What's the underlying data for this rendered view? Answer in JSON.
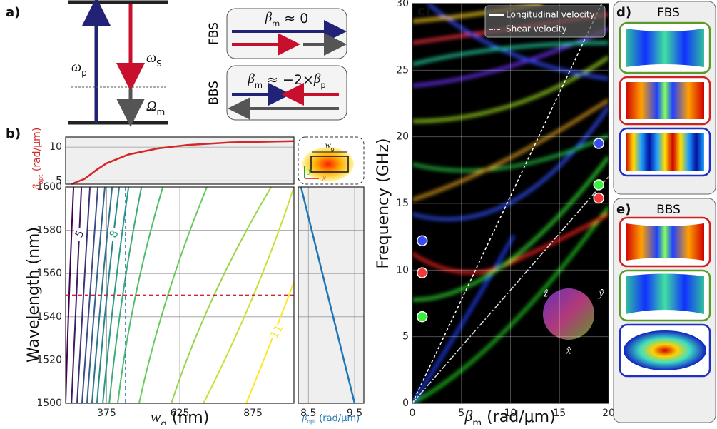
{
  "panel_labels": [
    "a)",
    "b)",
    "c)",
    "d)",
    "e)"
  ],
  "panel_a": {
    "omega_p": {
      "sym": "ω",
      "sub": "p"
    },
    "omega_s": {
      "sym": "ω",
      "sub": "S"
    },
    "Omega_m": {
      "sym": "Ω",
      "sub": "m"
    },
    "fbs": {
      "label": "FBS",
      "sym": "β",
      "sub": "m",
      "rel": " ≈ 0"
    },
    "bbs": {
      "label": "BBS",
      "sym": "β",
      "sub": "m",
      "rel": " ≈ −2×",
      "sym2": "β",
      "sub2": "p"
    }
  },
  "inset": {
    "width": {
      "sym": "w",
      "sub": "g"
    },
    "y": "y",
    "x": "x"
  },
  "chart_data": [
    {
      "type": "line",
      "ylabel": {
        "sym": "β",
        "sub": "opt",
        "unit": " (rad/μm)"
      },
      "xlim": [
        235,
        1015
      ],
      "ylim": [
        4.5,
        11.5
      ],
      "yticks": [
        5,
        10
      ],
      "grid": true,
      "series": [
        {
          "color": "#d62728",
          "x": [
            255,
            300,
            340,
            375,
            450,
            550,
            650,
            800,
            1015
          ],
          "values": [
            4.5,
            5.3,
            6.6,
            7.6,
            8.9,
            9.8,
            10.3,
            10.7,
            10.9
          ]
        }
      ]
    },
    {
      "type": "contour",
      "xlabel": {
        "sym": "w",
        "sub": "g",
        "unit": " (nm)"
      },
      "ylabel": "Wavelength (nm)",
      "xlim": [
        235,
        1015
      ],
      "ylim": [
        1500,
        1600
      ],
      "xticks": [
        375,
        625,
        875
      ],
      "yticks": [
        1500,
        1520,
        1540,
        1560,
        1580,
        1600
      ],
      "grid": true,
      "wavelengths": [
        1500,
        1550,
        1600
      ],
      "contours": [
        {
          "level": 4.5,
          "x": [
            235,
            247,
            262
          ]
        },
        {
          "level": 5,
          "x": [
            255,
            272,
            289
          ]
        },
        {
          "level": 5.5,
          "x": [
            274,
            296,
            318
          ]
        },
        {
          "level": 6,
          "x": [
            291,
            318,
            345
          ]
        },
        {
          "level": 6.5,
          "x": [
            308,
            337,
            369
          ]
        },
        {
          "level": 7,
          "x": [
            325,
            357,
            394
          ]
        },
        {
          "level": 7.5,
          "x": [
            342,
            376,
            418
          ]
        },
        {
          "level": 8,
          "x": [
            362,
            401,
            450
          ]
        },
        {
          "level": 8.5,
          "x": [
            384,
            430,
            494
          ]
        },
        {
          "level": 9,
          "x": [
            413,
            474,
            567
          ]
        },
        {
          "level": 9.5,
          "x": [
            486,
            584,
            718
          ]
        },
        {
          "level": 10,
          "x": [
            596,
            742,
            937
          ]
        },
        {
          "level": 10.5,
          "x": [
            706,
            877,
            1015
          ]
        },
        {
          "level": 11,
          "x": [
            852,
            998,
            1133
          ]
        }
      ],
      "contour_labels": [
        5,
        8,
        11
      ],
      "operating_wavelength": 1550,
      "operating_width": 440
    },
    {
      "type": "line",
      "xlabel": {
        "sym": "β",
        "sub": "opt",
        "unit": " (rad/μm)"
      },
      "xlim": [
        8.28,
        9.7
      ],
      "ylim": [
        1500,
        1600
      ],
      "xticks": [
        8.5,
        9.5
      ],
      "yticks": [
        1500,
        1520,
        1540,
        1560,
        1580,
        1600
      ],
      "grid": true,
      "series": [
        {
          "color": "#1f77b4",
          "x": [
            8.34,
            9.5
          ],
          "values": [
            1600,
            1500
          ]
        }
      ]
    },
    {
      "type": "dispersion",
      "xlabel": {
        "sym": "β",
        "sub": "m",
        "unit": " (rad/μm)"
      },
      "ylabel": "Frequency (GHz)",
      "xlim": [
        0,
        20
      ],
      "ylim": [
        0,
        30
      ],
      "xticks": [
        0,
        5,
        10,
        15,
        20
      ],
      "yticks": [
        0,
        5,
        10,
        15,
        20,
        25,
        30
      ],
      "grid": true,
      "series": [
        {
          "name": "Longitudinal velocity",
          "color": "#ffffff",
          "dash": "4,3",
          "x": [
            0,
            19.3
          ],
          "values": [
            0,
            30
          ]
        },
        {
          "name": "Shear velocity",
          "color": "#dddddd",
          "dash": "8,3,2,3",
          "x": [
            0,
            20
          ],
          "values": [
            0,
            17
          ]
        }
      ],
      "points": {
        "x": [
          1,
          1,
          1,
          19,
          19,
          19
        ],
        "values": [
          12.2,
          9.8,
          6.5,
          19.5,
          16.4,
          15.4
        ],
        "colors": [
          "#3a4bf0",
          "#f03a3a",
          "#3af03a",
          "#3a4bf0",
          "#3af03a",
          "#f03a3a"
        ]
      },
      "orientation_labels": [
        "ẑ",
        "ŷ",
        "x̂"
      ]
    }
  ],
  "panel_d": {
    "title": "FBS"
  },
  "panel_e": {
    "title": "BBS"
  }
}
